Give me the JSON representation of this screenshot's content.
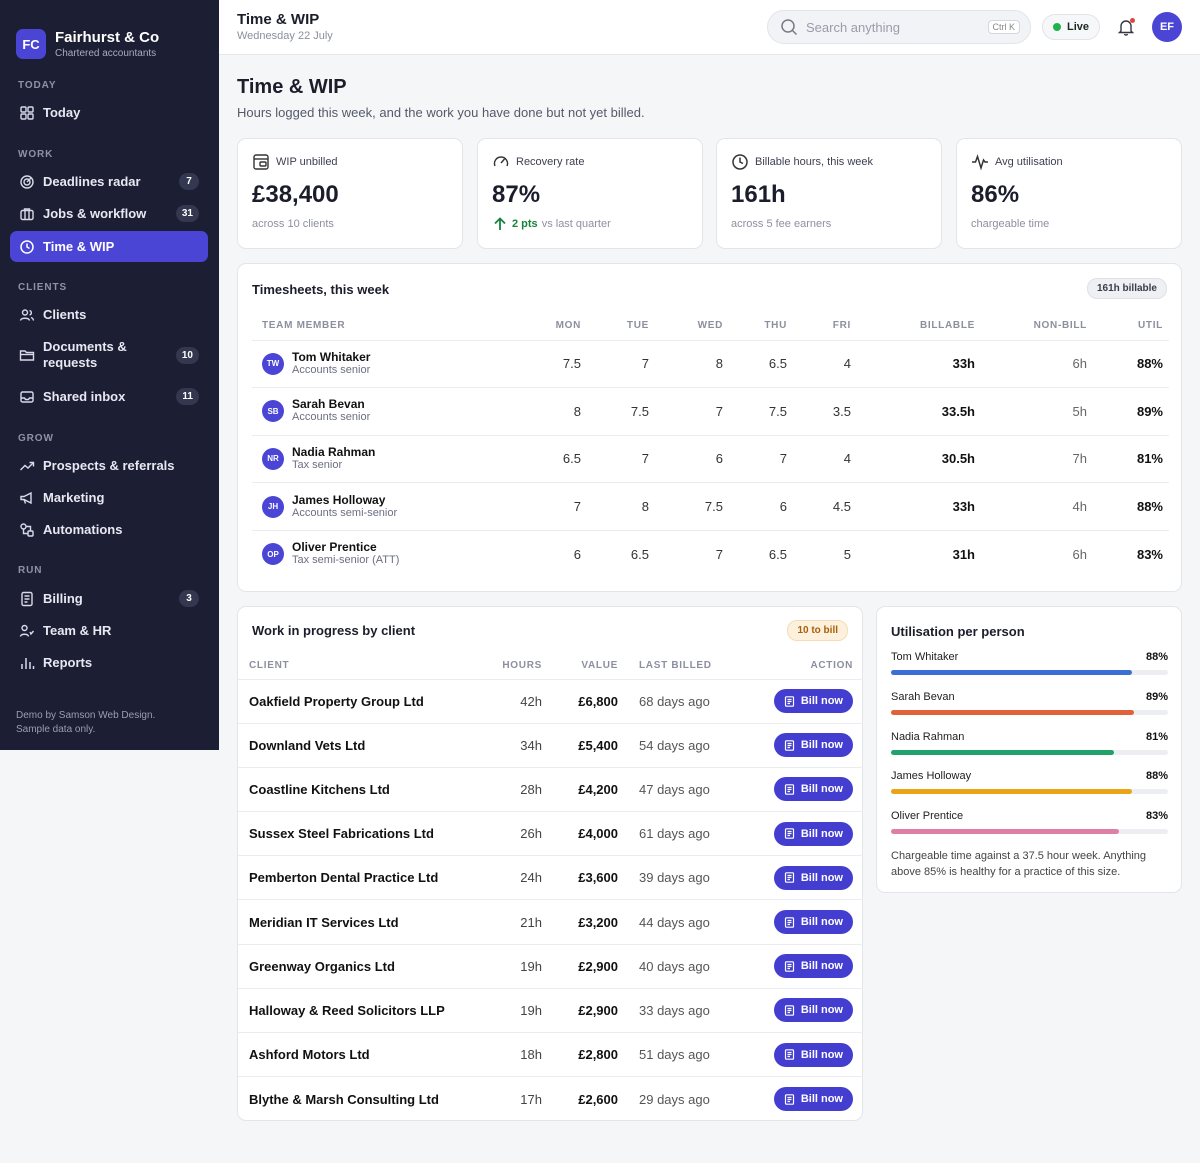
{
  "brand": {
    "initials": "FC",
    "name": "Fairhurst & Co",
    "subtitle": "Chartered accountants"
  },
  "sidebar": {
    "sections": {
      "today": "TODAY",
      "work": "WORK",
      "clients": "CLIENTS",
      "grow": "GROW",
      "run": "RUN"
    },
    "items": [
      {
        "label": "Today",
        "icon": "grid-icon"
      },
      {
        "label": "Deadlines radar",
        "icon": "radar-icon",
        "badge": "7"
      },
      {
        "label": "Jobs & workflow",
        "icon": "briefcase-icon",
        "badge": "31"
      },
      {
        "label": "Time & WIP",
        "icon": "clock-icon",
        "active": true
      },
      {
        "label": "Clients",
        "icon": "users-icon"
      },
      {
        "label": "Documents & requests",
        "icon": "folder-icon",
        "badge": "10"
      },
      {
        "label": "Shared inbox",
        "icon": "inbox-icon",
        "badge": "11"
      },
      {
        "label": "Prospects & referrals",
        "icon": "trend-icon"
      },
      {
        "label": "Marketing",
        "icon": "megaphone-icon"
      },
      {
        "label": "Automations",
        "icon": "automation-icon"
      },
      {
        "label": "Billing",
        "icon": "invoice-icon",
        "badge": "3"
      },
      {
        "label": "Team & HR",
        "icon": "team-icon"
      },
      {
        "label": "Reports",
        "icon": "bar-chart-icon"
      }
    ],
    "footer": [
      "Demo by Samson Web Design.",
      "Sample data only."
    ]
  },
  "header": {
    "title": "Time & WIP",
    "date": "Wednesday 22 July",
    "search_placeholder": "Search anything",
    "search_shortcut": "Ctrl K",
    "live_label": "Live",
    "avatar": "EF"
  },
  "page": {
    "title": "Time & WIP",
    "subtitle": "Hours logged this week, and the work you have done but not yet billed."
  },
  "kpis": [
    {
      "label": "WIP unbilled",
      "value": "£38,400",
      "foot": "across 10 clients",
      "icon": "wip-icon"
    },
    {
      "label": "Recovery rate",
      "value": "87%",
      "delta": "2 pts",
      "foot": "vs last quarter",
      "icon": "gauge-icon"
    },
    {
      "label": "Billable hours, this week",
      "value": "161h",
      "foot": "across 5 fee earners",
      "icon": "clock-icon"
    },
    {
      "label": "Avg utilisation",
      "value": "86%",
      "foot": "chargeable time",
      "icon": "pulse-icon"
    }
  ],
  "timesheets": {
    "title": "Timesheets, this week",
    "pill": "161h billable",
    "columns": [
      "TEAM MEMBER",
      "MON",
      "TUE",
      "WED",
      "THU",
      "FRI",
      "BILLABLE",
      "NON-BILL",
      "UTIL"
    ],
    "rows": [
      {
        "initials": "TW",
        "name": "Tom Whitaker",
        "role": "Accounts senior",
        "mon": "7.5",
        "tue": "7",
        "wed": "8",
        "thu": "6.5",
        "fri": "4",
        "billable": "33h",
        "nonbill": "6h",
        "util": "88%"
      },
      {
        "initials": "SB",
        "name": "Sarah Bevan",
        "role": "Accounts senior",
        "mon": "8",
        "tue": "7.5",
        "wed": "7",
        "thu": "7.5",
        "fri": "3.5",
        "billable": "33.5h",
        "nonbill": "5h",
        "util": "89%"
      },
      {
        "initials": "NR",
        "name": "Nadia Rahman",
        "role": "Tax senior",
        "mon": "6.5",
        "tue": "7",
        "wed": "6",
        "thu": "7",
        "fri": "4",
        "billable": "30.5h",
        "nonbill": "7h",
        "util": "81%"
      },
      {
        "initials": "JH",
        "name": "James Holloway",
        "role": "Accounts semi-senior",
        "mon": "7",
        "tue": "8",
        "wed": "7.5",
        "thu": "6",
        "fri": "4.5",
        "billable": "33h",
        "nonbill": "4h",
        "util": "88%"
      },
      {
        "initials": "OP",
        "name": "Oliver Prentice",
        "role": "Tax semi-senior (ATT)",
        "mon": "6",
        "tue": "6.5",
        "wed": "7",
        "thu": "6.5",
        "fri": "5",
        "billable": "31h",
        "nonbill": "6h",
        "util": "83%"
      }
    ]
  },
  "wip": {
    "title": "Work in progress by client",
    "pill": "10 to bill",
    "columns": [
      "CLIENT",
      "HOURS",
      "VALUE",
      "LAST BILLED",
      "ACTION"
    ],
    "button_label": "Bill now",
    "rows": [
      {
        "client": "Oakfield Property Group Ltd",
        "hours": "42h",
        "value": "£6,800",
        "last": "68 days ago"
      },
      {
        "client": "Downland Vets Ltd",
        "hours": "34h",
        "value": "£5,400",
        "last": "54 days ago"
      },
      {
        "client": "Coastline Kitchens Ltd",
        "hours": "28h",
        "value": "£4,200",
        "last": "47 days ago"
      },
      {
        "client": "Sussex Steel Fabrications Ltd",
        "hours": "26h",
        "value": "£4,000",
        "last": "61 days ago"
      },
      {
        "client": "Pemberton Dental Practice Ltd",
        "hours": "24h",
        "value": "£3,600",
        "last": "39 days ago"
      },
      {
        "client": "Meridian IT Services Ltd",
        "hours": "21h",
        "value": "£3,200",
        "last": "44 days ago"
      },
      {
        "client": "Greenway Organics Ltd",
        "hours": "19h",
        "value": "£2,900",
        "last": "40 days ago"
      },
      {
        "client": "Halloway & Reed Solicitors LLP",
        "hours": "19h",
        "value": "£2,900",
        "last": "33 days ago"
      },
      {
        "client": "Ashford Motors Ltd",
        "hours": "18h",
        "value": "£2,800",
        "last": "51 days ago"
      },
      {
        "client": "Blythe & Marsh Consulting Ltd",
        "hours": "17h",
        "value": "£2,600",
        "last": "29 days ago"
      }
    ]
  },
  "utilisation": {
    "title": "Utilisation per person",
    "people": [
      {
        "name": "Tom Whitaker",
        "label": "88%",
        "value": 88,
        "color": "#3b6fd6"
      },
      {
        "name": "Sarah Bevan",
        "label": "89%",
        "value": 89,
        "color": "#e0613a"
      },
      {
        "name": "Nadia Rahman",
        "label": "81%",
        "value": 81,
        "color": "#22a26a"
      },
      {
        "name": "James Holloway",
        "label": "88%",
        "value": 88,
        "color": "#e9a515"
      },
      {
        "name": "Oliver Prentice",
        "label": "83%",
        "value": 83,
        "color": "#e07fa6"
      }
    ],
    "note": "Chargeable time against a 37.5 hour week. Anything above 85% is healthy for a practice of this size."
  },
  "colors": {
    "accent": "#4b45d6",
    "sidebar_bg": "#1c1f33",
    "live_dot": "#22b24c",
    "positive": "#18833a"
  }
}
